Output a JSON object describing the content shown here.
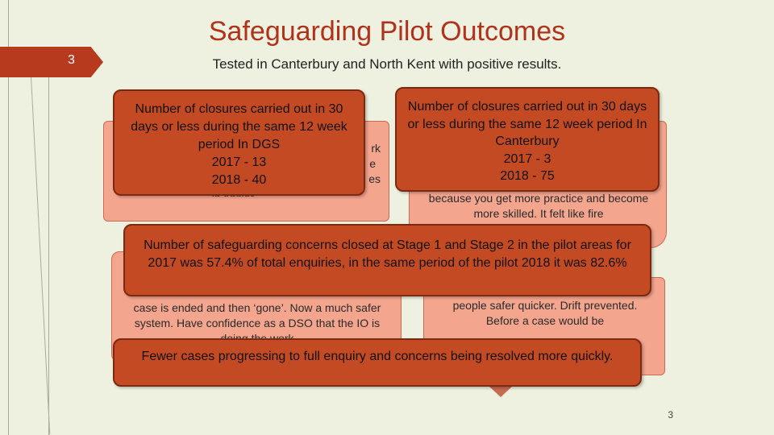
{
  "slide": {
    "title": "Safeguarding Pilot Outcomes",
    "number_tab": "3",
    "subtitle": "Tested in Canterbury and North Kent with positive results.",
    "footer_number": "3"
  },
  "notes": {
    "top_left_partial": [
      "rk",
      "e",
      "es",
      "is easier"
    ],
    "top_right_partial": "because you get more practice and become more skilled. It felt like fire",
    "bottom_left_partial": "case is ended and then ‘gone’.  Now a much safer system. Have confidence as a DSO that the IO is doing the work",
    "bottom_right_partial": "more responsive approach and making people safer quicker.  Drift prevented.  Before a case would be"
  },
  "callouts": {
    "dgs": "Number of closures carried out in 30 days or less during the same 12 week period In DGS\n2017  - 13\n2018 - 40",
    "canterbury": "Number of closures carried out in 30 days or less during the same 12 week period In Canterbury\n2017  - 3\n2018 - 75",
    "safeguarding": "Number of safeguarding concerns closed at Stage 1 and Stage 2 in the pilot areas for 2017 was  57.4% of total enquiries, in the same period of the pilot 2018  it was 82.6%",
    "fewer_cases": "Fewer cases progressing to full enquiry and concerns being resolved more quickly."
  }
}
